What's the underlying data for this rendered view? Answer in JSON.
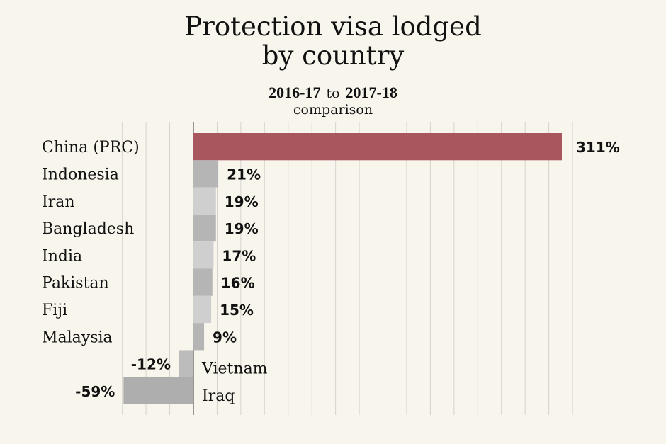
{
  "chart_data": {
    "type": "bar",
    "orientation": "horizontal",
    "title_line1": "Protection visa lodged",
    "title_line2": "by country",
    "subtitle_from": "2016-17",
    "subtitle_to_word": "to",
    "subtitle_to": "2017-18",
    "subtitle_line2": "comparison",
    "unit": "%",
    "xlim": [
      -60,
      320
    ],
    "grid_step": 20,
    "grid": true,
    "categories": [
      "China (PRC)",
      "Indonesia",
      "Iran",
      "Bangladesh",
      "India",
      "Pakistan",
      "Fiji",
      "Malaysia",
      "Vietnam",
      "Iraq"
    ],
    "values": [
      311,
      21,
      19,
      19,
      17,
      16,
      15,
      9,
      -12,
      -59
    ],
    "value_labels": [
      "311%",
      "21%",
      "19%",
      "19%",
      "17%",
      "16%",
      "15%",
      "9%",
      "-12%",
      "-59%"
    ],
    "colors": [
      "#a9575f",
      "#b6b5b5",
      "#d0cfcf",
      "#b6b5b5",
      "#d0cfcf",
      "#b6b5b5",
      "#d0cfcf",
      "#b6b5b5",
      "#bdbcbc",
      "#afaeae"
    ],
    "background": "#f8f5ec",
    "gridline_color": "#d6d3cb"
  }
}
